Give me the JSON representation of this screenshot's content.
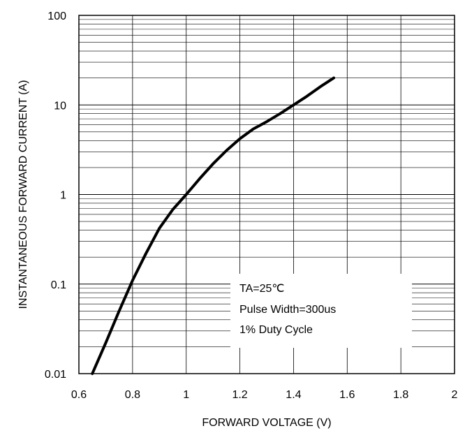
{
  "chart_data": {
    "type": "line",
    "title": "",
    "xlabel": "FORWARD VOLTAGE (V)",
    "ylabel": "INSTANTANEOUS FORWARD CURRENT (A)",
    "xlim": [
      0.6,
      2
    ],
    "ylim": [
      0.01,
      100
    ],
    "yscale": "log",
    "grid": true,
    "x_ticks": [
      "0.6",
      "0.8",
      "1",
      "1.2",
      "1.4",
      "1.6",
      "1.8",
      "2"
    ],
    "y_ticks": [
      "0.01",
      "0.1",
      "1",
      "10",
      "100"
    ],
    "series": [
      {
        "color": "#000000",
        "x": [
          0.65,
          0.7,
          0.75,
          0.8,
          0.85,
          0.9,
          0.95,
          1.0,
          1.05,
          1.1,
          1.15,
          1.2,
          1.25,
          1.3,
          1.35,
          1.4,
          1.45,
          1.5,
          1.55
        ],
        "y": [
          0.01,
          0.022,
          0.05,
          0.11,
          0.22,
          0.42,
          0.68,
          1.0,
          1.5,
          2.2,
          3.1,
          4.2,
          5.4,
          6.5,
          8.0,
          10.0,
          12.5,
          16.0,
          20.0
        ]
      }
    ],
    "annotations": [
      "TA=25℃",
      "Pulse Width=300us",
      "1% Duty Cycle"
    ],
    "legend": "bottom-right"
  }
}
